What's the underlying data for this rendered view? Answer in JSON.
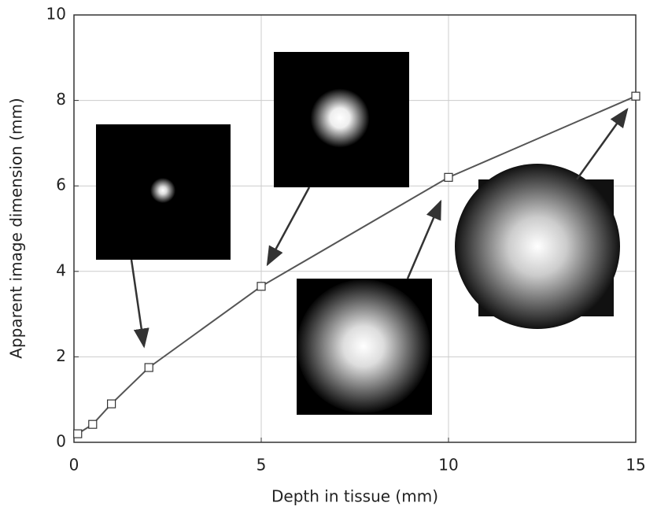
{
  "chart_data": {
    "type": "line",
    "x_label": "Depth in tissue (mm)",
    "y_label": "Apparent image dimension (mm)",
    "x": [
      0.1,
      0.5,
      1,
      2,
      5,
      10,
      15
    ],
    "series": [
      {
        "color": "#555555",
        "values": [
          0.2,
          0.42,
          0.9,
          1.75,
          3.65,
          6.2,
          8.1
        ]
      }
    ],
    "xlim": [
      0,
      15
    ],
    "ylim": [
      0,
      10
    ],
    "xticks": [
      0,
      5,
      10,
      15
    ],
    "yticks": [
      0,
      2,
      4,
      6,
      8,
      10
    ],
    "grid": true
  }
}
